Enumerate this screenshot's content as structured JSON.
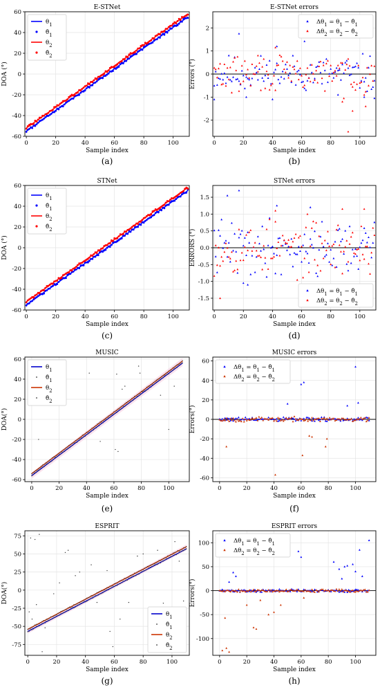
{
  "chart_data": [
    {
      "type": "scatter",
      "panel": "(a)",
      "title": "E-STNet",
      "xlabel": "Sample index",
      "ylabel": "DOA (°)",
      "xlim": [
        -1,
        111
      ],
      "ylim": [
        -60,
        60
      ],
      "xticks": [
        0,
        20,
        40,
        60,
        80,
        100
      ],
      "yticks": [
        -60,
        -40,
        -20,
        0,
        20,
        40,
        60
      ],
      "grid": true,
      "legend": "top-left",
      "series": [
        {
          "name": "θ1",
          "kind": "line",
          "color": "#0000ff",
          "x": [
            0,
            110
          ],
          "y": [
            -55,
            55
          ]
        },
        {
          "name": "θ̂1",
          "kind": "dots",
          "color": "#0000ff",
          "marker": "circle",
          "line_start": -55,
          "line_end": 55,
          "jitter": 1.2
        },
        {
          "name": "θ2",
          "kind": "line",
          "color": "#ff0000",
          "x": [
            0,
            110
          ],
          "y": [
            -52,
            58
          ]
        },
        {
          "name": "θ̂2",
          "kind": "dots",
          "color": "#ff0000",
          "marker": "circle",
          "line_start": -52,
          "line_end": 58,
          "jitter": 1.2
        }
      ]
    },
    {
      "type": "scatter",
      "panel": "(b)",
      "title": "E-STNet errors",
      "xlabel": "Sample index",
      "ylabel": "Errors (°)",
      "xlim": [
        -1,
        111
      ],
      "ylim": [
        -2.7,
        2.7
      ],
      "xticks": [
        0,
        20,
        40,
        60,
        80,
        100
      ],
      "yticks": [
        -2,
        -1,
        0,
        1,
        2
      ],
      "grid": true,
      "legend": "top-right",
      "zero_line": true,
      "series": [
        {
          "name": "Δθ1 = θ1 − θ̂1",
          "kind": "dots",
          "color": "#0000ff",
          "marker": "triangle",
          "spread": 0.8,
          "seed": 11,
          "outliers": [
            [
              17,
              1.75
            ],
            [
              62,
              1.42
            ],
            [
              43,
              1.2
            ],
            [
              0,
              -1.1
            ],
            [
              22,
              -1.0
            ],
            [
              110,
              -1.05
            ],
            [
              103,
              -1.0
            ],
            [
              85,
              -0.9
            ]
          ]
        },
        {
          "name": "Δθ2 = θ2 − θ̂2",
          "kind": "dots",
          "color": "#ff0000",
          "marker": "triangle",
          "spread": 0.8,
          "seed": 29,
          "outliers": [
            [
              92,
              -2.5
            ],
            [
              95,
              -1.6
            ],
            [
              104,
              -1.4
            ],
            [
              88,
              -1.2
            ],
            [
              42,
              1.15
            ],
            [
              30,
              0.8
            ]
          ]
        }
      ]
    },
    {
      "type": "scatter",
      "panel": "(c)",
      "title": "STNet",
      "xlabel": "Sample index",
      "ylabel": "DOA (°)",
      "xlim": [
        -1,
        111
      ],
      "ylim": [
        -60,
        60
      ],
      "xticks": [
        0,
        20,
        40,
        60,
        80,
        100
      ],
      "yticks": [
        -60,
        -40,
        -20,
        0,
        20,
        40,
        60
      ],
      "grid": true,
      "legend": "top-left",
      "series": [
        {
          "name": "θ1",
          "kind": "line",
          "color": "#0000ff",
          "x": [
            0,
            110
          ],
          "y": [
            -55,
            55
          ]
        },
        {
          "name": "θ̂1",
          "kind": "dots",
          "color": "#0000ff",
          "marker": "circle",
          "line_start": -55,
          "line_end": 55,
          "jitter": 1.2
        },
        {
          "name": "θ2",
          "kind": "line",
          "color": "#ff0000",
          "x": [
            0,
            110
          ],
          "y": [
            -52,
            58
          ]
        },
        {
          "name": "θ̂2",
          "kind": "dots",
          "color": "#ff0000",
          "marker": "circle",
          "line_start": -52,
          "line_end": 58,
          "jitter": 1.2
        }
      ]
    },
    {
      "type": "scatter",
      "panel": "(d)",
      "title": "STNet errors",
      "xlabel": "Sample index",
      "ylabel": "ERRORS (°)",
      "xlim": [
        -1,
        111
      ],
      "ylim": [
        -1.85,
        1.85
      ],
      "xticks": [
        0,
        20,
        40,
        60,
        80,
        100
      ],
      "yticks": [
        -1.5,
        -1.0,
        -0.5,
        0.0,
        0.5,
        1.0,
        1.5
      ],
      "ytick_decimals": 1,
      "grid": true,
      "legend": "bottom-right",
      "zero_line": true,
      "series": [
        {
          "name": "Δθ1 = θ1 − θ̂1",
          "kind": "dots",
          "color": "#0000ff",
          "marker": "triangle",
          "spread": 0.8,
          "seed": 41,
          "outliers": [
            [
              17,
              1.7
            ],
            [
              9,
              1.55
            ],
            [
              66,
              1.2
            ],
            [
              43,
              1.25
            ],
            [
              102,
              -1.3
            ],
            [
              96,
              -1.5
            ],
            [
              20,
              -1.05
            ],
            [
              23,
              -1.1
            ]
          ]
        },
        {
          "name": "Δθ2 = θ2 − θ̂2",
          "kind": "dots",
          "color": "#ff0000",
          "marker": "triangle",
          "spread": 0.8,
          "seed": 53,
          "outliers": [
            [
              4,
              -1.5
            ],
            [
              90,
              -1.65
            ],
            [
              103,
              1.15
            ],
            [
              88,
              1.15
            ],
            [
              42,
              1.1
            ],
            [
              84,
              -1.3
            ]
          ]
        }
      ]
    },
    {
      "type": "scatter",
      "panel": "(e)",
      "title": "MUSIC",
      "xlabel": "Sample index",
      "ylabel": "DOA(°)",
      "xlim": [
        -5,
        115
      ],
      "ylim": [
        -62,
        62
      ],
      "xticks": [
        0,
        20,
        40,
        60,
        80,
        100
      ],
      "yticks": [
        -60,
        -40,
        -20,
        0,
        20,
        40,
        60
      ],
      "grid": true,
      "legend": "top-left",
      "band": true,
      "series": [
        {
          "name": "θ1",
          "kind": "line",
          "color": "#0000cc",
          "x": [
            0,
            110
          ],
          "y": [
            -56,
            56
          ]
        },
        {
          "name": "θ̂1",
          "kind": "dots",
          "color": "#333333",
          "marker": "smalldot",
          "line_start": -56,
          "line_end": 56,
          "jitter": 0.5,
          "outliers": [
            [
              42,
              46
            ],
            [
              62,
              45
            ],
            [
              66,
              30
            ],
            [
              68,
              33
            ],
            [
              78,
              53
            ],
            [
              94,
              24
            ],
            [
              61,
              -30
            ],
            [
              63,
              -32
            ],
            [
              50,
              -22
            ]
          ]
        },
        {
          "name": "θ2",
          "kind": "line",
          "color": "#cc3300",
          "x": [
            0,
            110
          ],
          "y": [
            -54,
            58
          ]
        },
        {
          "name": "θ̂2",
          "kind": "dots",
          "color": "#333333",
          "marker": "smalldot",
          "line_start": -54,
          "line_end": 58,
          "jitter": 0.5,
          "outliers": [
            [
              5,
              -20
            ],
            [
              79,
              46
            ],
            [
              100,
              -10
            ],
            [
              104,
              33
            ]
          ]
        }
      ]
    },
    {
      "type": "scatter",
      "panel": "(f)",
      "title": "MUSIC errors",
      "xlabel": "Sample index",
      "ylabel": "Errors(°)",
      "xlim": [
        -5,
        115
      ],
      "ylim": [
        -64,
        64
      ],
      "xticks": [
        0,
        20,
        40,
        60,
        80,
        100
      ],
      "yticks": [
        -60,
        -40,
        -20,
        0,
        20,
        40,
        60
      ],
      "grid": true,
      "legend": "top-left",
      "zero_line": true,
      "series": [
        {
          "name": "Δθ1 = θ1 − θ̂1",
          "kind": "dots",
          "color": "#0000ff",
          "marker": "triangle",
          "spread": 2.2,
          "seed": 61,
          "outliers": [
            [
              100,
              54
            ],
            [
              62,
              38
            ],
            [
              60,
              36
            ],
            [
              50,
              16
            ],
            [
              102,
              17
            ],
            [
              94,
              14
            ]
          ]
        },
        {
          "name": "Δθ2 = θ2 − θ̂2",
          "kind": "dots",
          "color": "#cc3300",
          "marker": "triangle",
          "spread": 2.2,
          "seed": 67,
          "outliers": [
            [
              41,
              -57
            ],
            [
              61,
              -37
            ],
            [
              5,
              -28
            ],
            [
              66,
              -17
            ],
            [
              68,
              -18
            ],
            [
              78,
              -28
            ],
            [
              79,
              -20
            ]
          ]
        }
      ]
    },
    {
      "type": "scatter",
      "panel": "(g)",
      "title": "ESPRIT",
      "xlabel": "Sample index",
      "ylabel": "DOA(°)",
      "xlim": [
        -2,
        112
      ],
      "ylim": [
        -90,
        82
      ],
      "xticks": [
        0,
        20,
        40,
        60,
        80,
        100
      ],
      "yticks": [
        -75,
        -50,
        -25,
        0,
        25,
        50,
        75
      ],
      "grid": true,
      "legend": "bottom-right",
      "band": true,
      "series": [
        {
          "name": "θ1",
          "kind": "line",
          "color": "#0000cc",
          "x": [
            0,
            110
          ],
          "y": [
            -57,
            57
          ]
        },
        {
          "name": "θ̂1",
          "kind": "dots",
          "color": "#333333",
          "marker": "smalldot",
          "line_start": -57,
          "line_end": 57,
          "jitter": 0.8,
          "outliers": [
            [
              2,
              72
            ],
            [
              5,
              70
            ],
            [
              8,
              77
            ],
            [
              10,
              -85
            ],
            [
              12,
              -52
            ],
            [
              26,
              52
            ],
            [
              28,
              55
            ],
            [
              57,
              -57
            ],
            [
              59,
              -78
            ],
            [
              70,
              -17
            ],
            [
              86,
              -55
            ],
            [
              94,
              -18
            ],
            [
              102,
              67
            ],
            [
              108,
              -15
            ],
            [
              3,
              -40
            ],
            [
              22,
              10
            ],
            [
              44,
              35
            ],
            [
              48,
              -17
            ],
            [
              64,
              -40
            ],
            [
              76,
              47
            ]
          ]
        },
        {
          "name": "θ2",
          "kind": "line",
          "color": "#cc3300",
          "x": [
            0,
            110
          ],
          "y": [
            -54,
            60
          ]
        },
        {
          "name": "θ̂2",
          "kind": "dots",
          "color": "#333333",
          "marker": "smalldot",
          "line_start": -54,
          "line_end": 60,
          "jitter": 0.8,
          "outliers": [
            [
              1,
              -30
            ],
            [
              6,
              -20
            ],
            [
              18,
              -5
            ],
            [
              33,
              20
            ],
            [
              36,
              25
            ],
            [
              55,
              27
            ],
            [
              80,
              50
            ],
            [
              90,
              55
            ],
            [
              105,
              40
            ],
            [
              96,
              -25
            ]
          ]
        }
      ]
    },
    {
      "type": "scatter",
      "panel": "(h)",
      "title": "ESPRIT errors",
      "xlabel": "Sample index",
      "ylabel": "Errors(°)",
      "xlim": [
        -5,
        115
      ],
      "ylim": [
        -135,
        125
      ],
      "xticks": [
        0,
        20,
        40,
        60,
        80,
        100
      ],
      "yticks": [
        -100,
        -50,
        0,
        50,
        100
      ],
      "grid": true,
      "legend": "top-left",
      "zero_line": true,
      "series": [
        {
          "name": "Δθ1 = θ1 − θ̂1",
          "kind": "dots",
          "color": "#0000ff",
          "marker": "triangle",
          "spread": 3,
          "seed": 71,
          "outliers": [
            [
              110,
              105
            ],
            [
              103,
              85
            ],
            [
              58,
              82
            ],
            [
              60,
              70
            ],
            [
              94,
              52
            ],
            [
              92,
              50
            ],
            [
              88,
              45
            ],
            [
              98,
              55
            ],
            [
              105,
              30
            ],
            [
              100,
              40
            ],
            [
              10,
              38
            ],
            [
              12,
              30
            ],
            [
              84,
              60
            ],
            [
              7,
              18
            ],
            [
              90,
              25
            ]
          ]
        },
        {
          "name": "Δθ2 = θ2 − θ̂2",
          "kind": "dots",
          "color": "#cc3300",
          "marker": "triangle",
          "spread": 3,
          "seed": 79,
          "outliers": [
            [
              2,
              -125
            ],
            [
              5,
              -120
            ],
            [
              7,
              -128
            ],
            [
              25,
              -77
            ],
            [
              27,
              -80
            ],
            [
              36,
              -50
            ],
            [
              40,
              -45
            ],
            [
              4,
              -57
            ],
            [
              20,
              -30
            ],
            [
              45,
              -30
            ],
            [
              30,
              -20
            ],
            [
              62,
              -15
            ]
          ]
        }
      ]
    }
  ]
}
